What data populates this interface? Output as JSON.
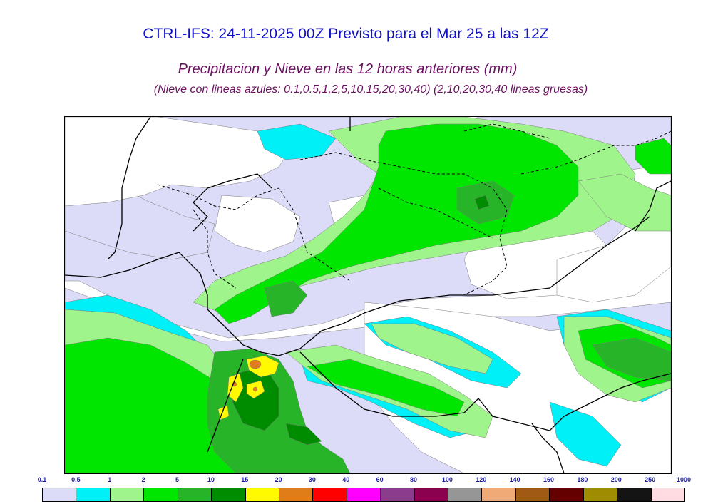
{
  "title": {
    "line1": "CTRL-IFS: 24-11-2025 00Z Previsto para el Mar 25 a las 12Z",
    "line2": "Precipitacion y Nieve en las 12 horas anteriores (mm)",
    "line3": "(Nieve con lineas azules: 0.1,0.5,1,2,5,10,15,20,30,40)  (2,10,20,30,40 lineas gruesas)"
  },
  "legend": {
    "thresholds": [
      "0.1",
      "0.5",
      "1",
      "2",
      "5",
      "10",
      "15",
      "20",
      "30",
      "40",
      "60",
      "80",
      "100",
      "120",
      "140",
      "160",
      "180",
      "200",
      "250",
      "1000"
    ],
    "colors": [
      "#dcdcf8",
      "#00f0f8",
      "#a0f48c",
      "#00e600",
      "#28b428",
      "#008c00",
      "#fffa00",
      "#e17d19",
      "#ff0000",
      "#ff00ff",
      "#8c3c8c",
      "#8c0050",
      "#969696",
      "#f0aa78",
      "#a05a14",
      "#640000",
      "#a08c00",
      "#141414",
      "#ffdce1"
    ]
  },
  "map": {
    "layer_colors": {
      "land": "#ffffff",
      "light": "#dcdcf8",
      "cyan": "#00f0f8",
      "pale_green": "#a0f48c",
      "green": "#00e600",
      "mid_green": "#28b428",
      "dark_green": "#008c00",
      "yellow": "#fffa00",
      "orange": "#e17d19",
      "coast": "#000000",
      "border": "#000000"
    }
  }
}
